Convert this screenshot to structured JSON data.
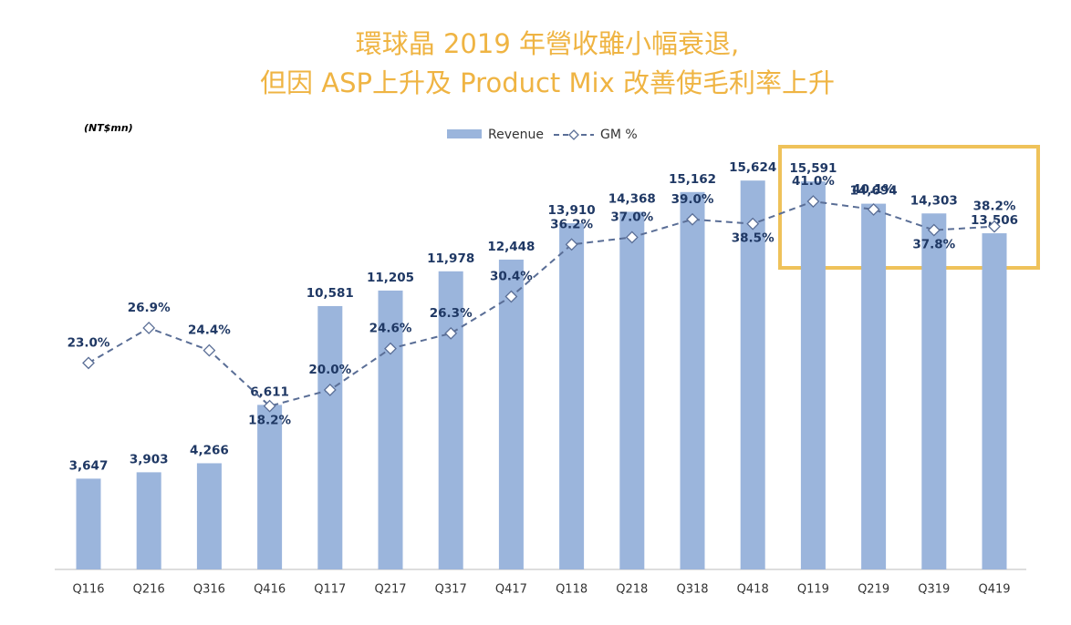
{
  "chart_data": {
    "type": "bar-line",
    "title": [
      "環球晶 2019 年營收雖小幅衰退,",
      "但因 ASP上升及 Product Mix 改善使毛利率上升"
    ],
    "unit_label": "(NT$mn)",
    "categories": [
      "Q116",
      "Q216",
      "Q316",
      "Q416",
      "Q117",
      "Q217",
      "Q317",
      "Q417",
      "Q118",
      "Q218",
      "Q318",
      "Q418",
      "Q119",
      "Q219",
      "Q319",
      "Q419"
    ],
    "series": [
      {
        "name": "Revenue",
        "type": "bar",
        "color": "#9bb5dc",
        "values": [
          3647,
          3903,
          4266,
          6611,
          10581,
          11205,
          11978,
          12448,
          13910,
          14368,
          15162,
          15624,
          15591,
          14694,
          14303,
          13506
        ],
        "value_labels": [
          "3,647",
          "3,903",
          "4,266",
          "6,611",
          "10,581",
          "11,205",
          "11,978",
          "12,448",
          "13,910",
          "14,368",
          "15,162",
          "15,624",
          "15,591",
          "14,694",
          "14,303",
          "13,506"
        ]
      },
      {
        "name": "GM %",
        "type": "line",
        "axis": "y2",
        "color": "#5a6e96",
        "values": [
          23.0,
          26.9,
          24.4,
          18.2,
          20.0,
          24.6,
          26.3,
          30.4,
          36.2,
          37.0,
          39.0,
          38.5,
          41.0,
          40.1,
          37.8,
          38.2
        ],
        "value_labels": [
          "23.0%",
          "26.9%",
          "24.4%",
          "18.2%",
          "20.0%",
          "24.6%",
          "26.3%",
          "30.4%",
          "36.2%",
          "37.0%",
          "39.0%",
          "38.5%",
          "41.0%",
          "40.1%",
          "37.8%",
          "38.2%"
        ]
      }
    ],
    "ylim": [
      0,
      22000
    ],
    "y2lim": [
      0,
      61
    ]
  }
}
